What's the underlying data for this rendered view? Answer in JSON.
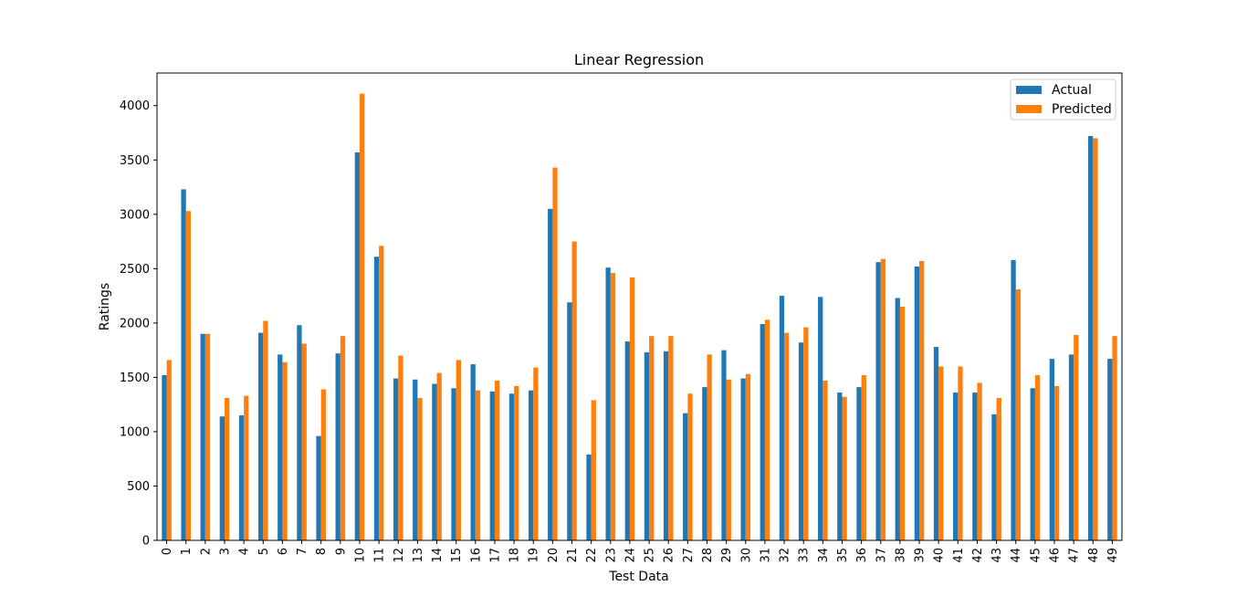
{
  "chart_data": {
    "type": "bar",
    "title": "Linear Regression",
    "xlabel": "Test Data",
    "ylabel": "Ratings",
    "ylim": [
      0,
      4300
    ],
    "yticks": [
      0,
      500,
      1000,
      1500,
      2000,
      2500,
      3000,
      3500,
      4000
    ],
    "grid": false,
    "legend_position": "top-right",
    "categories": [
      "0",
      "1",
      "2",
      "3",
      "4",
      "5",
      "6",
      "7",
      "8",
      "9",
      "10",
      "11",
      "12",
      "13",
      "14",
      "15",
      "16",
      "17",
      "18",
      "19",
      "20",
      "21",
      "22",
      "23",
      "24",
      "25",
      "26",
      "27",
      "28",
      "29",
      "30",
      "31",
      "32",
      "33",
      "34",
      "35",
      "36",
      "37",
      "38",
      "39",
      "40",
      "41",
      "42",
      "43",
      "44",
      "45",
      "46",
      "47",
      "48",
      "49"
    ],
    "series": [
      {
        "name": "Actual",
        "color": "#1f77b4",
        "values": [
          1520,
          3230,
          1900,
          1140,
          1150,
          1910,
          1710,
          1980,
          960,
          1720,
          3570,
          2610,
          1490,
          1480,
          1440,
          1400,
          1620,
          1370,
          1350,
          1380,
          3050,
          2190,
          790,
          2510,
          1830,
          1730,
          1740,
          1170,
          1410,
          1750,
          1490,
          1990,
          2250,
          1820,
          2240,
          1360,
          1410,
          2560,
          2230,
          2520,
          1780,
          1360,
          1360,
          1160,
          2580,
          1400,
          1670,
          1710,
          3720,
          1670
        ]
      },
      {
        "name": "Predicted",
        "color": "#ff7f0e",
        "values": [
          1660,
          3030,
          1900,
          1310,
          1330,
          2020,
          1640,
          1810,
          1390,
          1880,
          4110,
          2710,
          1700,
          1310,
          1540,
          1660,
          1380,
          1470,
          1420,
          1590,
          3430,
          2750,
          1290,
          2460,
          2420,
          1880,
          1880,
          1350,
          1710,
          1480,
          1530,
          2030,
          1910,
          1960,
          1470,
          1320,
          1520,
          2590,
          2150,
          2570,
          1600,
          1600,
          1450,
          1310,
          2310,
          1520,
          1420,
          1890,
          3700,
          1880
        ]
      }
    ]
  }
}
